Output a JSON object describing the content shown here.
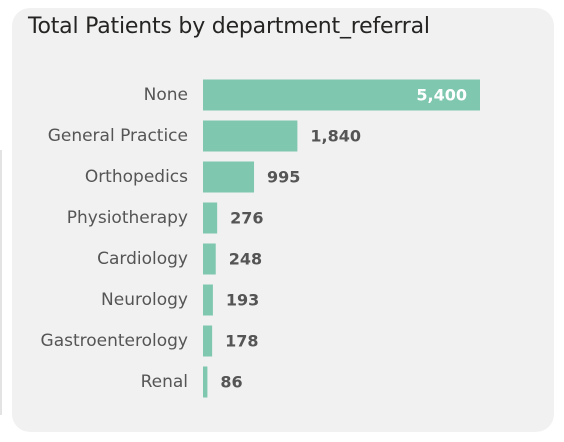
{
  "chart_data": {
    "type": "bar",
    "orientation": "horizontal",
    "title": "Total Patients by department_referral",
    "categories": [
      "None",
      "General Practice",
      "Orthopedics",
      "Physiotherapy",
      "Cardiology",
      "Neurology",
      "Gastroenterology",
      "Renal"
    ],
    "values": [
      5400,
      1840,
      995,
      276,
      248,
      193,
      178,
      86
    ],
    "value_labels": [
      "5,400",
      "1,840",
      "995",
      "276",
      "248",
      "193",
      "178",
      "86"
    ],
    "xlabel": "",
    "ylabel": "",
    "xlim": [
      0,
      5400
    ],
    "grid": false,
    "legend": "none",
    "bar_color": "#7fc7af"
  }
}
